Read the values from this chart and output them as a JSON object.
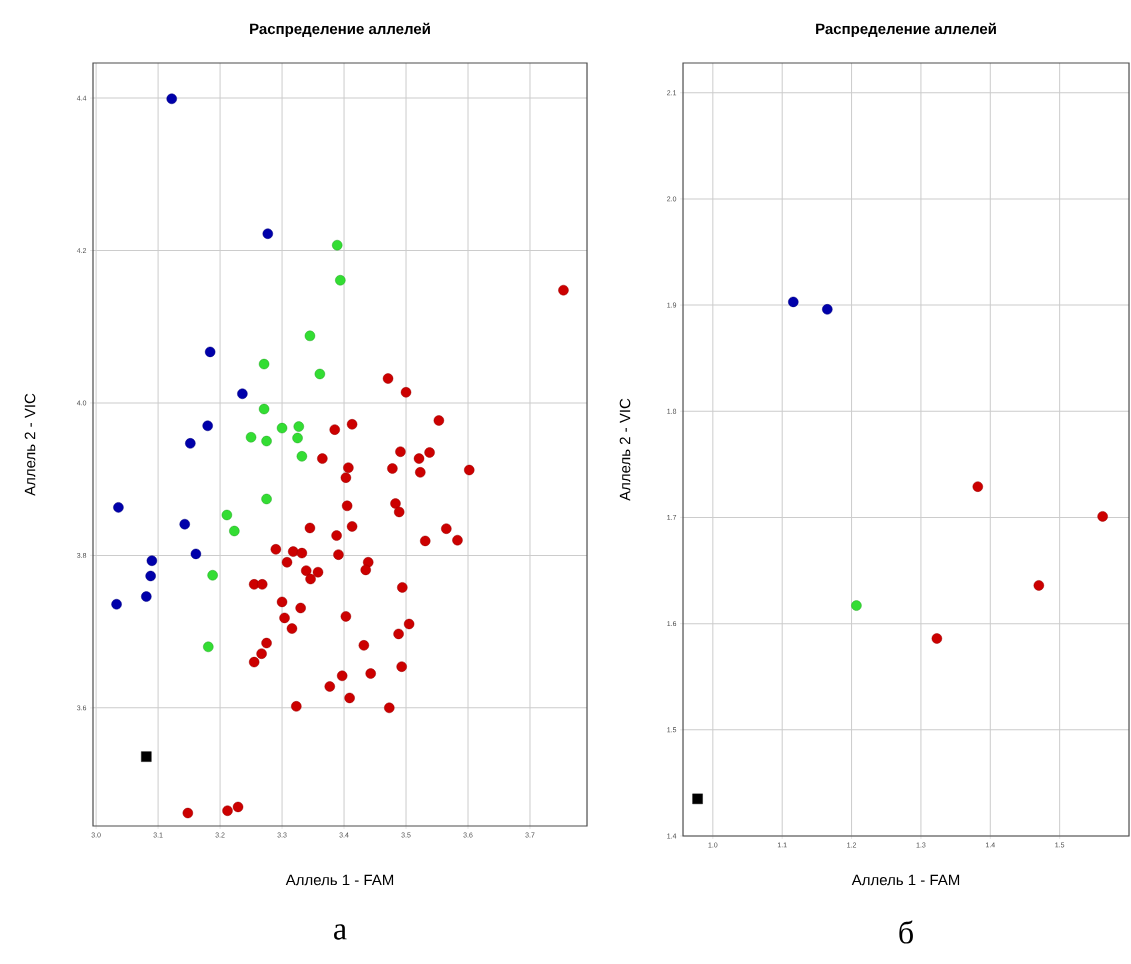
{
  "chart_data": [
    {
      "type": "scatter",
      "title": "Распределение аллелей",
      "xlabel": "Аллель 1 - FAM",
      "ylabel": "Аллель 2 - VIC",
      "annotations": [
        "а"
      ],
      "xlim": [
        2.995,
        3.792
      ],
      "ylim": [
        3.445,
        4.446
      ],
      "grid": true,
      "xticks": [
        {
          "value": 3,
          "label": "3.0"
        },
        3.1,
        3.2,
        3.3,
        3.4,
        3.5,
        3.6,
        3.7
      ],
      "yticks": [
        3.6,
        3.8,
        {
          "value": 4,
          "label": "4.0"
        },
        4.2,
        4.4
      ],
      "series": [
        {
          "color": "#0000aa",
          "marker": "circle",
          "x": [
            3.122,
            3.277,
            3.184,
            3.236,
            3.18,
            3.152,
            3.036,
            3.143,
            3.161,
            3.09,
            3.088,
            3.081,
            3.033
          ],
          "values": [
            4.399,
            4.222,
            4.067,
            4.012,
            3.97,
            3.947,
            3.863,
            3.841,
            3.802,
            3.793,
            3.773,
            3.746,
            3.736
          ]
        },
        {
          "color": "#33dd33",
          "marker": "circle",
          "x": [
            3.389,
            3.394,
            3.345,
            3.271,
            3.361,
            3.271,
            3.3,
            3.327,
            3.25,
            3.275,
            3.325,
            3.332,
            3.275,
            3.211,
            3.223,
            3.188,
            3.181
          ],
          "values": [
            4.207,
            4.161,
            4.088,
            4.051,
            4.038,
            3.992,
            3.967,
            3.969,
            3.955,
            3.95,
            3.954,
            3.93,
            3.874,
            3.853,
            3.832,
            3.774,
            3.68
          ]
        },
        {
          "color": "#cc0000",
          "marker": "circle",
          "x": [
            3.471,
            3.5,
            3.553,
            3.754,
            3.385,
            3.413,
            3.365,
            3.407,
            3.403,
            3.491,
            3.521,
            3.538,
            3.478,
            3.523,
            3.602,
            3.405,
            3.483,
            3.489,
            3.565,
            3.583,
            3.345,
            3.413,
            3.388,
            3.531,
            3.29,
            3.318,
            3.332,
            3.391,
            3.308,
            3.439,
            3.435,
            3.339,
            3.358,
            3.346,
            3.255,
            3.268,
            3.494,
            3.3,
            3.33,
            3.304,
            3.403,
            3.316,
            3.505,
            3.488,
            3.275,
            3.267,
            3.255,
            3.432,
            3.493,
            3.397,
            3.443,
            3.377,
            3.409,
            3.323,
            3.473,
            3.148,
            3.212,
            3.229
          ],
          "values": [
            4.032,
            4.014,
            3.977,
            4.148,
            3.965,
            3.972,
            3.927,
            3.915,
            3.902,
            3.936,
            3.927,
            3.935,
            3.914,
            3.909,
            3.912,
            3.865,
            3.868,
            3.857,
            3.835,
            3.82,
            3.836,
            3.838,
            3.826,
            3.819,
            3.808,
            3.805,
            3.803,
            3.801,
            3.791,
            3.791,
            3.781,
            3.78,
            3.778,
            3.769,
            3.762,
            3.762,
            3.758,
            3.739,
            3.731,
            3.718,
            3.72,
            3.704,
            3.71,
            3.697,
            3.685,
            3.671,
            3.66,
            3.682,
            3.654,
            3.642,
            3.645,
            3.628,
            3.613,
            3.602,
            3.6,
            3.462,
            3.465,
            3.47
          ]
        },
        {
          "color": "#000000",
          "marker": "square",
          "x": [
            3.081
          ],
          "values": [
            3.536
          ]
        }
      ]
    },
    {
      "type": "scatter",
      "title": "Распределение аллелей",
      "xlabel": "Аллель 1 - FAM",
      "ylabel": "Аллель 2 - VIC",
      "annotations": [
        "б"
      ],
      "xlim": [
        0.957,
        1.6
      ],
      "ylim": [
        1.4,
        2.128
      ],
      "grid": true,
      "xticks": [
        {
          "value": 1,
          "label": "1.0"
        },
        1.1,
        1.2,
        1.3,
        1.4,
        1.5
      ],
      "yticks": [
        1.4,
        1.5,
        1.6,
        1.7,
        1.8,
        1.9,
        {
          "value": 2,
          "label": "2.0"
        },
        2.1
      ],
      "series": [
        {
          "color": "#0000aa",
          "marker": "circle",
          "x": [
            1.116,
            1.165
          ],
          "values": [
            1.903,
            1.896
          ]
        },
        {
          "color": "#33dd33",
          "marker": "circle",
          "x": [
            1.207
          ],
          "values": [
            1.617
          ]
        },
        {
          "color": "#cc0000",
          "marker": "circle",
          "x": [
            1.323,
            1.382,
            1.47,
            1.562
          ],
          "values": [
            1.586,
            1.729,
            1.636,
            1.701
          ]
        },
        {
          "color": "#000000",
          "marker": "square",
          "x": [
            0.978
          ],
          "values": [
            1.435
          ]
        }
      ]
    }
  ]
}
